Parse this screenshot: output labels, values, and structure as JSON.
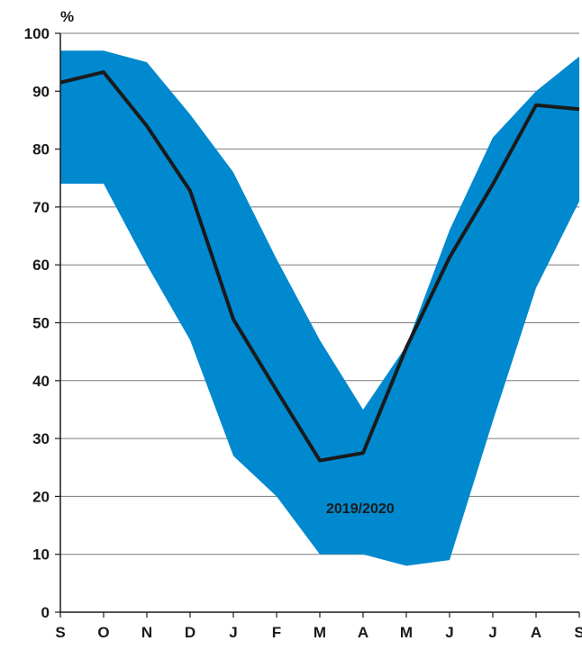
{
  "chart_data": {
    "type": "area",
    "y_unit_label": "%",
    "categories": [
      "S",
      "O",
      "N",
      "D",
      "J",
      "F",
      "M",
      "A",
      "M",
      "J",
      "J",
      "A",
      "S"
    ],
    "y_ticks": [
      0,
      10,
      20,
      30,
      40,
      50,
      60,
      70,
      80,
      90,
      100
    ],
    "ylim": [
      0,
      100
    ],
    "grid": true,
    "annotation": "2019/2020",
    "band": {
      "color": "#0089cf",
      "upper": [
        97,
        97,
        95,
        86,
        76,
        61,
        47,
        35,
        46,
        66,
        82,
        90,
        96
      ],
      "lower": [
        74,
        74,
        60,
        47,
        27,
        20,
        10,
        10,
        8,
        9,
        33,
        56,
        71
      ]
    },
    "series": [
      {
        "color": "#1a1a1a",
        "values": [
          91.5,
          93.3,
          84,
          72.8,
          50.6,
          38.3,
          26.2,
          27.5,
          45.7,
          61.3,
          73.9,
          87.6,
          86.9
        ]
      }
    ]
  }
}
